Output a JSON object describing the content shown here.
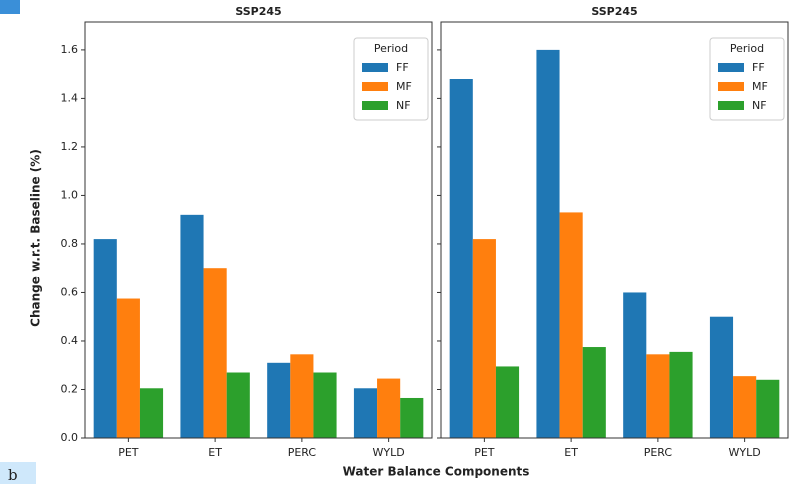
{
  "figure": {
    "xlabel": "Water Balance Components",
    "ylabel": "Change w.r.t. Baseline (%)",
    "panel_label": "b"
  },
  "chart_data": [
    {
      "type": "bar",
      "title": "SSP245",
      "categories": [
        "PET",
        "ET",
        "PERC",
        "WYLD"
      ],
      "series": [
        {
          "name": "FF",
          "color": "#1f77b4",
          "values": [
            0.82,
            0.92,
            0.31,
            0.205
          ]
        },
        {
          "name": "MF",
          "color": "#ff7f0e",
          "values": [
            0.575,
            0.7,
            0.345,
            0.245
          ]
        },
        {
          "name": "NF",
          "color": "#2ca02c",
          "values": [
            0.205,
            0.27,
            0.27,
            0.165
          ]
        }
      ],
      "ylim": [
        0,
        1.715
      ],
      "yticks": [
        {
          "value": 0,
          "label": "0.0"
        },
        0.2,
        0.4,
        0.6,
        0.8,
        {
          "value": 1,
          "label": "1.0"
        },
        1.2,
        1.4,
        1.6
      ],
      "legend_title": "Period",
      "legend": "upper right"
    },
    {
      "type": "bar",
      "title": "SSP245",
      "categories": [
        "PET",
        "ET",
        "PERC",
        "WYLD"
      ],
      "series": [
        {
          "name": "FF",
          "color": "#1f77b4",
          "values": [
            1.48,
            1.6,
            0.6,
            0.5
          ]
        },
        {
          "name": "MF",
          "color": "#ff7f0e",
          "values": [
            0.82,
            0.93,
            0.345,
            0.255
          ]
        },
        {
          "name": "NF",
          "color": "#2ca02c",
          "values": [
            0.295,
            0.375,
            0.355,
            0.24
          ]
        }
      ],
      "ylim": [
        0,
        1.715
      ],
      "yticks": [
        0,
        0.2,
        0.4,
        0.6,
        0.8,
        1,
        1.2,
        1.4,
        1.6
      ],
      "legend_title": "Period",
      "legend": "upper right"
    }
  ]
}
